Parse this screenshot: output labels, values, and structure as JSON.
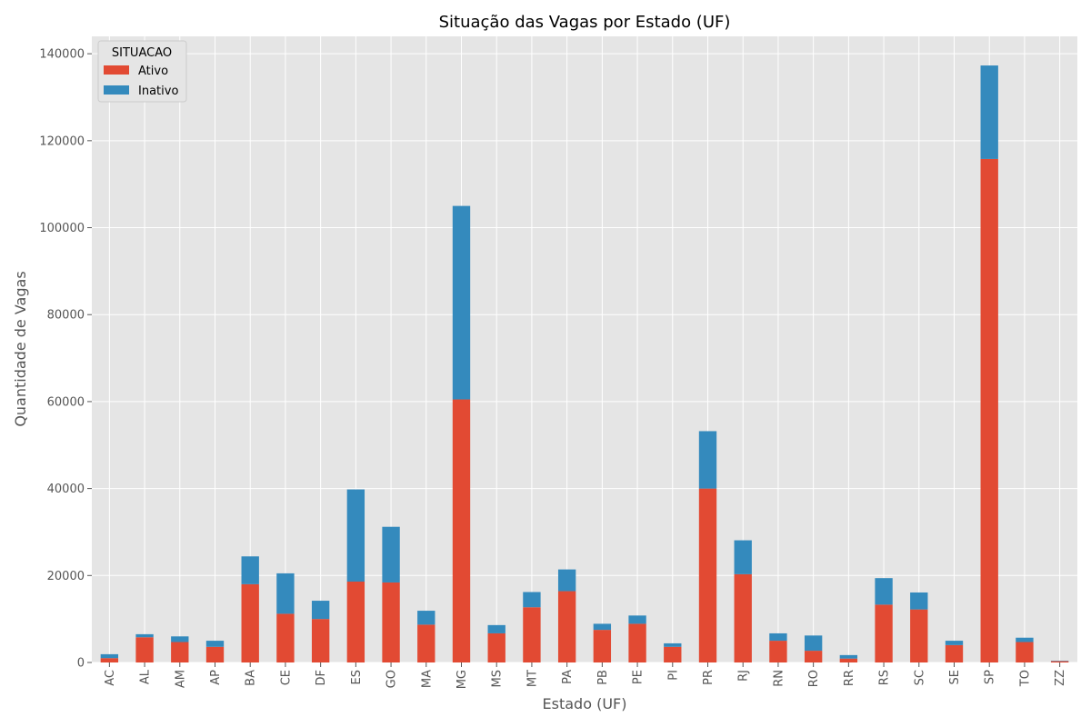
{
  "chart_data": {
    "type": "bar",
    "stacked": true,
    "title": "Situação das Vagas por Estado (UF)",
    "xlabel": "Estado (UF)",
    "ylabel": "Quantidade de Vagas",
    "ylim": [
      0,
      144000
    ],
    "yticks": [
      0,
      20000,
      40000,
      60000,
      80000,
      100000,
      120000,
      140000
    ],
    "grid": true,
    "legend": {
      "title": "SITUACAO",
      "placement": "top-left"
    },
    "categories": [
      "AC",
      "AL",
      "AM",
      "AP",
      "BA",
      "CE",
      "DF",
      "ES",
      "GO",
      "MA",
      "MG",
      "MS",
      "MT",
      "PA",
      "PB",
      "PE",
      "PI",
      "PR",
      "RJ",
      "RN",
      "RO",
      "RR",
      "RS",
      "SC",
      "SE",
      "SP",
      "TO",
      "ZZ"
    ],
    "series": [
      {
        "name": "Ativo",
        "color": "#E24A33",
        "values": [
          1000,
          5800,
          4700,
          3600,
          18000,
          11200,
          10000,
          18600,
          18400,
          8700,
          60500,
          6700,
          12700,
          16400,
          7500,
          8900,
          3600,
          40000,
          20300,
          5000,
          2700,
          900,
          13300,
          12200,
          4000,
          115800,
          4700,
          300
        ]
      },
      {
        "name": "Inativo",
        "color": "#348ABD",
        "values": [
          900,
          700,
          1300,
          1400,
          6400,
          9300,
          4200,
          21200,
          12800,
          3200,
          44500,
          1900,
          3500,
          5000,
          1400,
          1900,
          800,
          13200,
          7800,
          1700,
          3500,
          800,
          6100,
          3900,
          1000,
          21500,
          1000,
          100
        ]
      }
    ]
  },
  "colors": {
    "plot_background": "#E5E5E5",
    "grid": "#FFFFFF",
    "axis_text": "#555555"
  }
}
